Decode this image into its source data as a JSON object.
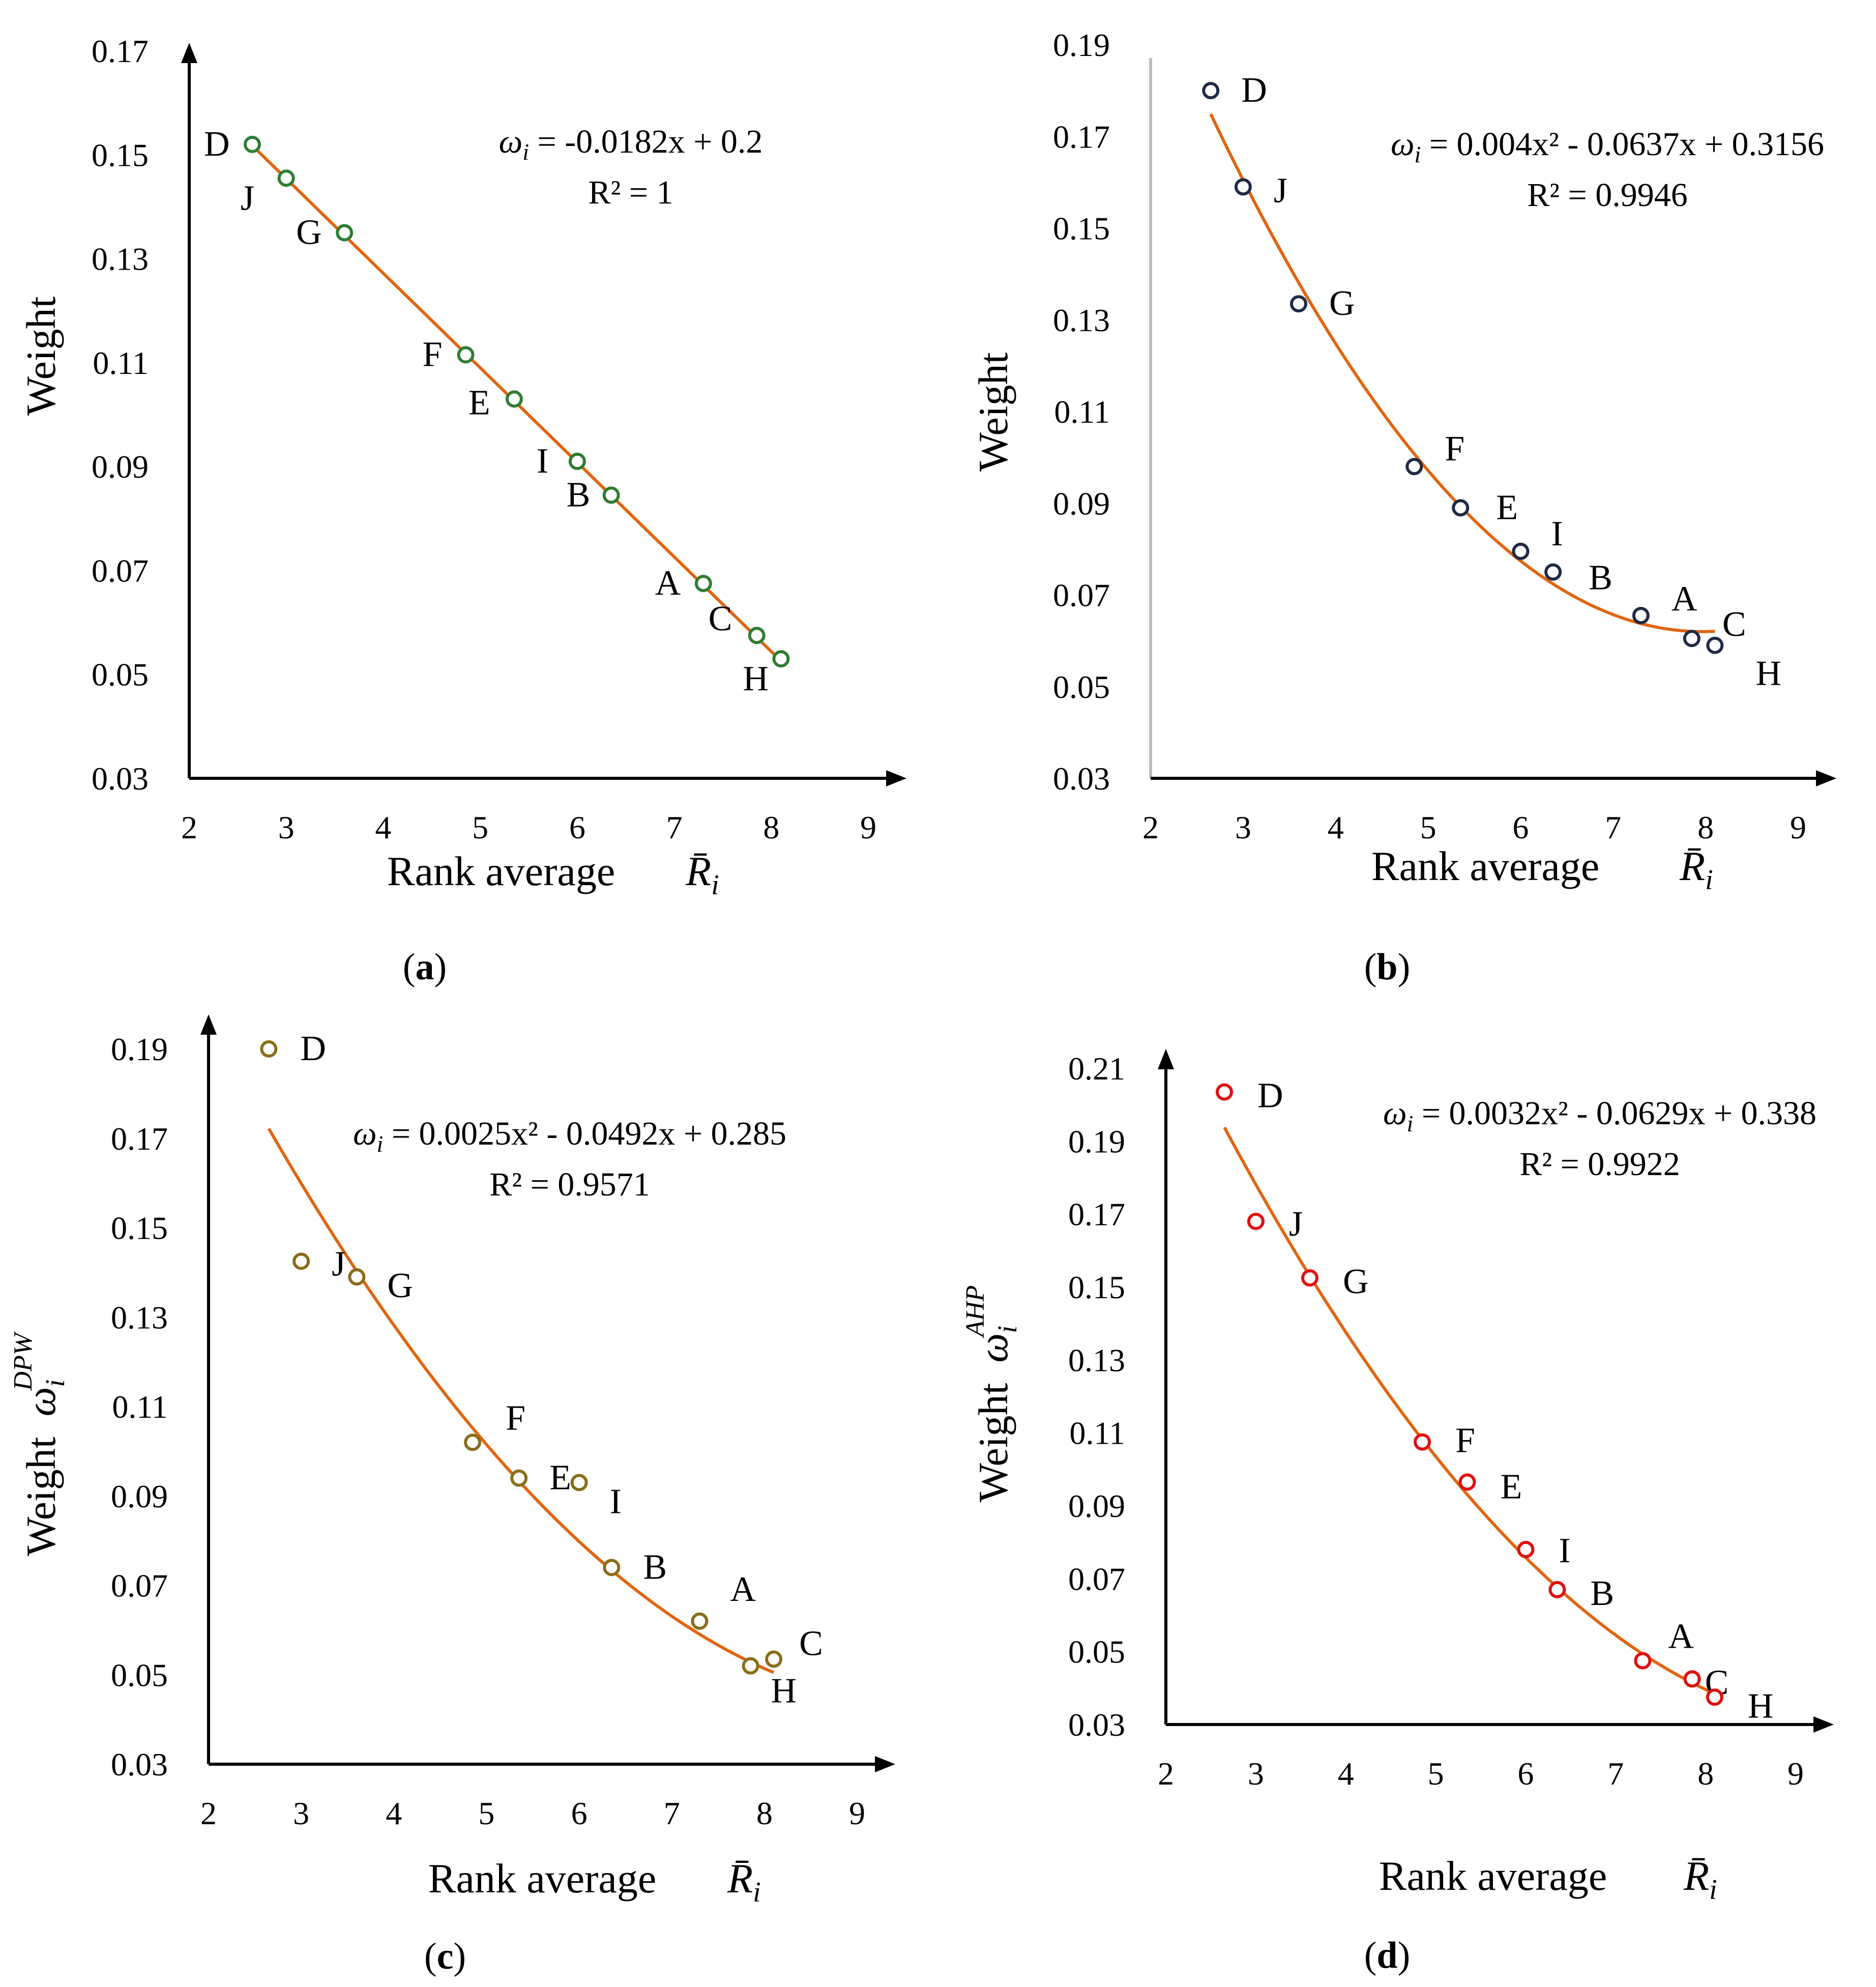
{
  "chart_data": [
    {
      "type": "scatter",
      "panel_label": "a",
      "point_color": "#2e7d32",
      "fit_color": "#e0650f",
      "fit": {
        "kind": "linear",
        "coef": [
          -0.0182,
          0.2
        ],
        "x_range": [
          2.65,
          8.1
        ]
      },
      "eq_lhs": "ω",
      "eq_sub": "i",
      "eq_text": " = -0.0182x + 0.2",
      "r2": "R² = 1",
      "ylabel": "Weight",
      "ylabel_symbol": "",
      "ylabel_sup": "",
      "xlabel": "Rank average",
      "xlabel_symbol": "R̄",
      "xlabel_sub": "i",
      "ylim": [
        0.03,
        0.17
      ],
      "yticks": [
        "0.03",
        "0.05",
        "0.07",
        "0.09",
        "0.11",
        "0.13",
        "0.15",
        "0.17"
      ],
      "xlim": [
        2,
        9
      ],
      "xticks": [
        "2",
        "3",
        "4",
        "5",
        "6",
        "7",
        "8",
        "9"
      ],
      "points": [
        {
          "label": "D",
          "x": 2.65,
          "y": 0.152
        },
        {
          "label": "J",
          "x": 3.0,
          "y": 0.1455
        },
        {
          "label": "G",
          "x": 3.6,
          "y": 0.135
        },
        {
          "label": "F",
          "x": 4.85,
          "y": 0.1115
        },
        {
          "label": "E",
          "x": 5.35,
          "y": 0.103
        },
        {
          "label": "I",
          "x": 6.0,
          "y": 0.091
        },
        {
          "label": "B",
          "x": 6.35,
          "y": 0.0845
        },
        {
          "label": "A",
          "x": 7.3,
          "y": 0.0675
        },
        {
          "label": "C",
          "x": 7.85,
          "y": 0.0575
        },
        {
          "label": "H",
          "x": 8.1,
          "y": 0.053
        }
      ]
    },
    {
      "type": "scatter",
      "panel_label": "b",
      "point_color": "#1f2a44",
      "fit_color": "#e0650f",
      "fit": {
        "kind": "poly2",
        "coef": [
          0.004,
          -0.0637,
          0.3156
        ],
        "x_range": [
          2.65,
          8.1
        ]
      },
      "eq_lhs": "ω",
      "eq_sub": "i",
      "eq_text": " = 0.004x² - 0.0637x + 0.3156",
      "r2": "R² = 0.9946",
      "ylabel": "Weight",
      "ylabel_symbol": "",
      "ylabel_sup": "",
      "xlabel": "Rank average",
      "xlabel_symbol": "R̄",
      "xlabel_sub": "i",
      "ylim": [
        0.03,
        0.19
      ],
      "yticks": [
        "0.03",
        "0.05",
        "0.07",
        "0.09",
        "0.11",
        "0.13",
        "0.15",
        "0.17",
        "0.19"
      ],
      "xlim": [
        2,
        9
      ],
      "xticks": [
        "2",
        "3",
        "4",
        "5",
        "6",
        "7",
        "8",
        "9"
      ],
      "points": [
        {
          "label": "D",
          "x": 2.65,
          "y": 0.18
        },
        {
          "label": "J",
          "x": 3.0,
          "y": 0.159
        },
        {
          "label": "G",
          "x": 3.6,
          "y": 0.1335
        },
        {
          "label": "F",
          "x": 4.85,
          "y": 0.098
        },
        {
          "label": "E",
          "x": 5.35,
          "y": 0.089
        },
        {
          "label": "I",
          "x": 6.0,
          "y": 0.0795
        },
        {
          "label": "B",
          "x": 6.35,
          "y": 0.075
        },
        {
          "label": "A",
          "x": 7.3,
          "y": 0.0655
        },
        {
          "label": "C",
          "x": 7.85,
          "y": 0.0605
        },
        {
          "label": "H",
          "x": 8.1,
          "y": 0.059
        }
      ]
    },
    {
      "type": "scatter",
      "panel_label": "c",
      "point_color": "#8a6d1a",
      "fit_color": "#e0650f",
      "fit": {
        "kind": "poly2",
        "coef": [
          0.0025,
          -0.0492,
          0.285
        ],
        "x_range": [
          2.65,
          8.1
        ]
      },
      "eq_lhs": "ω",
      "eq_sub": "i",
      "eq_text": " = 0.0025x² - 0.0492x + 0.285",
      "r2": "R² = 0.9571",
      "ylabel": "Weight",
      "ylabel_symbol": "ω",
      "ylabel_sub": "i",
      "ylabel_sup": "DPW",
      "xlabel": "Rank average",
      "xlabel_symbol": "R̄",
      "xlabel_sub": "i",
      "ylim": [
        0.03,
        0.19
      ],
      "yticks": [
        "0.03",
        "0.05",
        "0.07",
        "0.09",
        "0.11",
        "0.13",
        "0.15",
        "0.17",
        "0.19"
      ],
      "xlim": [
        2,
        9
      ],
      "xticks": [
        "2",
        "3",
        "4",
        "5",
        "6",
        "7",
        "8",
        "9"
      ],
      "points": [
        {
          "label": "D",
          "x": 2.65,
          "y": 0.19
        },
        {
          "label": "J",
          "x": 3.0,
          "y": 0.1425
        },
        {
          "label": "G",
          "x": 3.6,
          "y": 0.139
        },
        {
          "label": "F",
          "x": 4.85,
          "y": 0.102
        },
        {
          "label": "E",
          "x": 5.35,
          "y": 0.094
        },
        {
          "label": "I",
          "x": 6.0,
          "y": 0.093
        },
        {
          "label": "B",
          "x": 6.35,
          "y": 0.074
        },
        {
          "label": "A",
          "x": 7.3,
          "y": 0.062
        },
        {
          "label": "C",
          "x": 8.1,
          "y": 0.0535
        },
        {
          "label": "H",
          "x": 7.85,
          "y": 0.052
        }
      ]
    },
    {
      "type": "scatter",
      "panel_label": "d",
      "point_color": "#e01010",
      "fit_color": "#e0650f",
      "fit": {
        "kind": "poly2",
        "coef": [
          0.0032,
          -0.0629,
          0.338
        ],
        "x_range": [
          2.65,
          8.1
        ]
      },
      "eq_lhs": "ω",
      "eq_sub": "i",
      "eq_text": " = 0.0032x² - 0.0629x + 0.338",
      "r2": "R² = 0.9922",
      "ylabel": "Weight",
      "ylabel_symbol": "ω",
      "ylabel_sub": "i",
      "ylabel_sup": "AHP",
      "xlabel": "Rank average",
      "xlabel_symbol": "R̄",
      "xlabel_sub": "i",
      "ylim": [
        0.03,
        0.21
      ],
      "yticks": [
        "0.03",
        "0.05",
        "0.07",
        "0.09",
        "0.11",
        "0.13",
        "0.15",
        "0.17",
        "0.19",
        "0.21"
      ],
      "xlim": [
        2,
        9
      ],
      "xticks": [
        "2",
        "3",
        "4",
        "5",
        "6",
        "7",
        "8",
        "9"
      ],
      "points": [
        {
          "label": "D",
          "x": 2.65,
          "y": 0.2035
        },
        {
          "label": "J",
          "x": 3.0,
          "y": 0.168
        },
        {
          "label": "G",
          "x": 3.6,
          "y": 0.1525
        },
        {
          "label": "F",
          "x": 4.85,
          "y": 0.1075
        },
        {
          "label": "E",
          "x": 5.35,
          "y": 0.0965
        },
        {
          "label": "I",
          "x": 6.0,
          "y": 0.078
        },
        {
          "label": "B",
          "x": 6.35,
          "y": 0.067
        },
        {
          "label": "A",
          "x": 7.3,
          "y": 0.0475
        },
        {
          "label": "C",
          "x": 7.85,
          "y": 0.0425
        },
        {
          "label": "H",
          "x": 8.1,
          "y": 0.0375
        }
      ]
    }
  ]
}
